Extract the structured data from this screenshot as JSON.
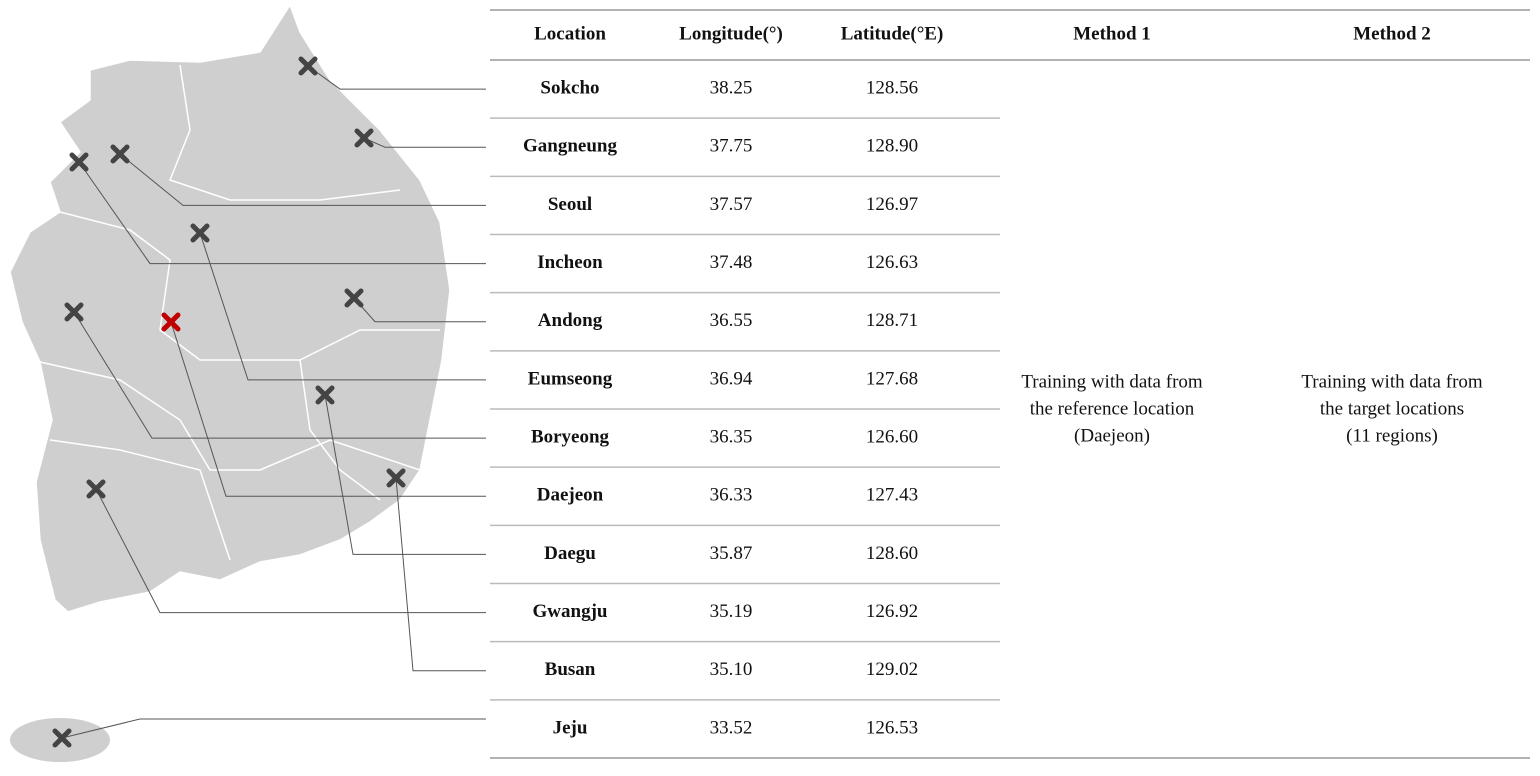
{
  "table": {
    "header": [
      "Location",
      "Longitude(°)",
      "Latitude(°E)",
      "Method 1",
      "Method 2"
    ],
    "rows": [
      [
        "Sokcho",
        "38.25",
        "128.56"
      ],
      [
        "Gangneung",
        "37.75",
        "128.90"
      ],
      [
        "Seoul",
        "37.57",
        "126.97"
      ],
      [
        "Incheon",
        "37.48",
        "126.63"
      ],
      [
        "Andong",
        "36.55",
        "128.71"
      ],
      [
        "Eumseong",
        "36.94",
        "127.68"
      ],
      [
        "Boryeong",
        "36.35",
        "126.60"
      ],
      [
        "Daejeon",
        "36.33",
        "127.43"
      ],
      [
        "Daegu",
        "35.87",
        "128.60"
      ],
      [
        "Gwangju",
        "35.19",
        "126.92"
      ],
      [
        "Busan",
        "35.10",
        "129.02"
      ],
      [
        "Jeju",
        "33.52",
        "126.53"
      ]
    ],
    "method1": [
      "Training with data from",
      "the reference location",
      "(Daejeon)"
    ],
    "method2": [
      "Training with data from",
      "the target locations",
      "(11 regions)"
    ]
  }
}
